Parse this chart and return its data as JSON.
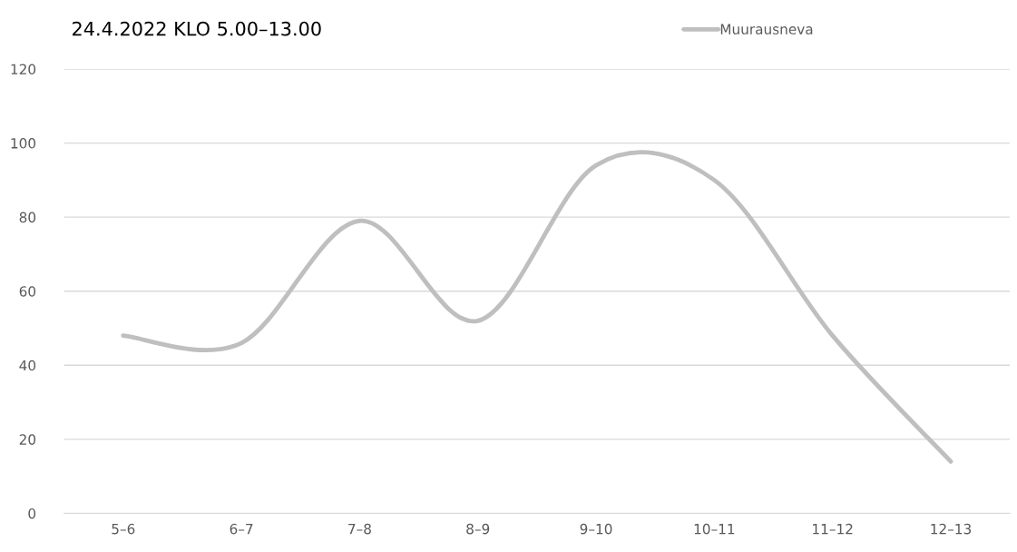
{
  "chart_data": {
    "type": "line",
    "title": "24.4.2022 KLO 5.00–13.00",
    "categories": [
      "5–6",
      "6–7",
      "7–8",
      "8–9",
      "9–10",
      "10–11",
      "11–12",
      "12–13"
    ],
    "series": [
      {
        "name": "Muurausneva",
        "color": "#bfbfbf",
        "values": [
          48,
          46,
          79,
          52,
          94,
          90,
          48,
          14
        ]
      }
    ],
    "ylim": [
      0,
      120
    ],
    "yticks": [
      0,
      20,
      40,
      60,
      80,
      100,
      120
    ],
    "grid": "y",
    "legend": "top right",
    "marker": "none",
    "line_style": "solid"
  }
}
